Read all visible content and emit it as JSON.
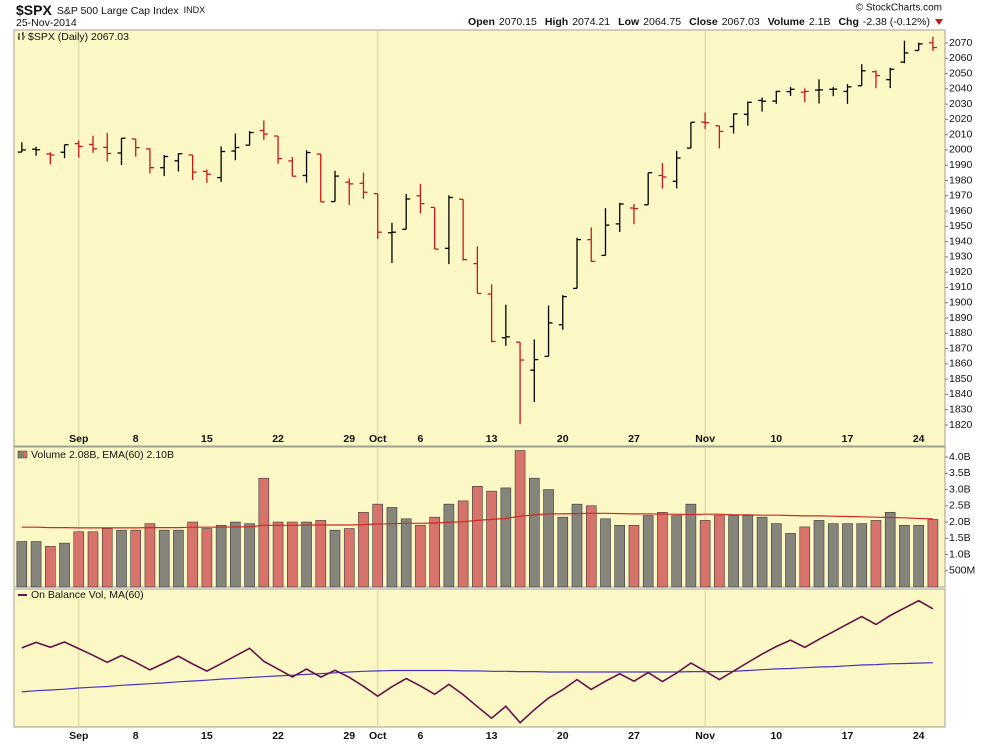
{
  "header": {
    "symbol": "$SPX",
    "name": "S&P 500 Large Cap Index",
    "exchange": "INDX",
    "date": "25-Nov-2014",
    "credit": "© StockCharts.com",
    "quote": [
      {
        "label": "Open",
        "value": "2070.15"
      },
      {
        "label": "High",
        "value": "2074.21"
      },
      {
        "label": "Low",
        "value": "2064.75"
      },
      {
        "label": "Close",
        "value": "2067.03"
      },
      {
        "label": "Volume",
        "value": "2.1B"
      },
      {
        "label": "Chg",
        "value": "-2.38 (-0.12%)"
      }
    ]
  },
  "chart_data": [
    {
      "type": "ohlc",
      "title": "$SPX (Daily) 2067.03",
      "open": [
        1998.6,
        2000.5,
        1997.4,
        1998.5,
        2004.1,
        2003.6,
        2001.7,
        1998.0,
        2007.2,
        2000.7,
        1988.4,
        1992.9,
        1996.7,
        1986.0,
        1981.9,
        1999.3,
        2003.1,
        2012.7,
        2009.1,
        1992.8,
        1983.3,
        1997.3,
        1966.2,
        1978.9,
        1978.2,
        1971.4,
        1945.8,
        1948.1,
        1970.0,
        1962.4,
        1935.6,
        1967.7,
        1925.6,
        1905.7,
        1877.1,
        1874.2,
        1855.9,
        1864.9,
        1885.6,
        1909.4,
        1941.3,
        1931.0,
        1951.6,
        1962.0,
        1964.1,
        1983.3,
        1979.5,
        2001.2,
        2018.2,
        2015.8,
        2015.3,
        2023.3,
        2032.4,
        2032.0,
        2038.2,
        2037.8,
        2039.2,
        2039.7,
        2038.3,
        2042.0,
        2051.2,
        2046.0,
        2057.5,
        2065.1,
        2070.15
      ],
      "high": [
        2005.0,
        2002.1,
        1998.5,
        2003.4,
        2006.1,
        2009.3,
        2011.2,
        2007.7,
        2007.2,
        2001.0,
        1996.7,
        1997.7,
        1996.7,
        1987.2,
        2002.3,
        2010.7,
        2012.3,
        2019.3,
        2009.1,
        1995.4,
        1999.8,
        1997.3,
        1986.4,
        1981.3,
        1985.2,
        1971.4,
        1952.3,
        1971.2,
        1977.8,
        1962.4,
        1970.4,
        1967.7,
        1936.9,
        1912.1,
        1898.7,
        1874.2,
        1876.0,
        1898.2,
        1905.0,
        1942.5,
        1949.3,
        1961.9,
        1965.3,
        1964.6,
        1985.1,
        1991.4,
        1999.4,
        2018.2,
        2024.5,
        2015.8,
        2023.8,
        2031.6,
        2034.3,
        2038.7,
        2041.3,
        2040.3,
        2046.2,
        2041.1,
        2043.1,
        2056.1,
        2052.1,
        2053.8,
        2071.5,
        2070.2,
        2074.21
      ],
      "low": [
        1998.6,
        1996.2,
        1990.5,
        1994.6,
        1994.9,
        1998.1,
        1992.4,
        1990.1,
        1995.6,
        1984.6,
        1982.9,
        1985.9,
        1980.3,
        1978.5,
        1979.1,
        1993.3,
        2003.1,
        2006.6,
        1991.0,
        1982.8,
        1978.6,
        1965.9,
        1966.2,
        1964.0,
        1968.0,
        1941.7,
        1926.0,
        1948.1,
        1958.4,
        1935.1,
        1925.3,
        1927.6,
        1906.1,
        1874.1,
        1871.8,
        1820.7,
        1835.0,
        1864.9,
        1882.3,
        1909.4,
        1926.8,
        1931.0,
        1946.3,
        1951.4,
        1964.1,
        1974.7,
        1974.8,
        2001.2,
        2013.7,
        2001.0,
        2010.7,
        2015.9,
        2025.1,
        2030.2,
        2035.3,
        2031.3,
        2030.4,
        2035.2,
        2030.2,
        2042.0,
        2040.4,
        2040.5,
        2056.8,
        2065.1,
        2064.75
      ],
      "close": [
        2000.0,
        2000.1,
        1996.7,
        2003.4,
        2002.3,
        2000.7,
        1997.7,
        2007.7,
        2001.5,
        1988.4,
        1995.7,
        1997.5,
        1985.5,
        1984.1,
        1999.0,
        2001.6,
        2011.4,
        2010.4,
        1994.3,
        1982.8,
        1998.3,
        1966.0,
        1982.9,
        1977.8,
        1972.3,
        1946.16,
        1946.17,
        1967.9,
        1964.8,
        1935.1,
        1968.9,
        1928.2,
        1906.1,
        1874.7,
        1877.7,
        1862.5,
        1862.8,
        1886.8,
        1904.0,
        1941.3,
        1927.1,
        1950.8,
        1964.6,
        1961.6,
        1985.1,
        1982.3,
        1994.7,
        2018.1,
        2017.8,
        2012.1,
        2023.6,
        2031.2,
        2031.9,
        2038.3,
        2039.7,
        2038.3,
        2039.3,
        2039.8,
        2041.3,
        2051.8,
        2048.7,
        2052.8,
        2063.5,
        2069.4,
        2067.03
      ],
      "up_color": "#000000",
      "down_color": "#c81818",
      "xlim": [
        -0.55,
        64.85
      ],
      "xticks": [
        {
          "value": 4,
          "label": "Sep"
        },
        {
          "value": 8,
          "label": "8"
        },
        {
          "value": 13,
          "label": "15"
        },
        {
          "value": 18,
          "label": "22"
        },
        {
          "value": 23,
          "label": "29"
        },
        {
          "value": 25,
          "label": "Oct"
        },
        {
          "value": 28,
          "label": "6"
        },
        {
          "value": 33,
          "label": "13"
        },
        {
          "value": 38,
          "label": "20"
        },
        {
          "value": 43,
          "label": "27"
        },
        {
          "value": 48,
          "label": "Nov"
        },
        {
          "value": 53,
          "label": "10"
        },
        {
          "value": 58,
          "label": "17"
        },
        {
          "value": 63,
          "label": "24"
        }
      ],
      "ylim": [
        1815.4,
        2078.5
      ],
      "yticks": [
        1820,
        1830,
        1840,
        1850,
        1860,
        1870,
        1880,
        1890,
        1900,
        1910,
        1920,
        1930,
        1940,
        1950,
        1960,
        1970,
        1980,
        1990,
        2000,
        2010,
        2020,
        2030,
        2040,
        2050,
        2060,
        2070
      ]
    },
    {
      "type": "bar",
      "title": "Volume 2.08B, EMA(60) 2.10B",
      "values": [
        1.4,
        1.4,
        1.25,
        1.35,
        1.7,
        1.7,
        1.8,
        1.75,
        1.75,
        1.95,
        1.75,
        1.75,
        2.0,
        1.8,
        1.9,
        2.0,
        1.95,
        3.35,
        2.0,
        2.0,
        2.0,
        2.05,
        1.75,
        1.8,
        2.3,
        2.55,
        2.45,
        2.1,
        1.9,
        2.15,
        2.55,
        2.65,
        3.1,
        2.95,
        3.05,
        4.2,
        3.35,
        3.0,
        2.15,
        2.55,
        2.5,
        2.1,
        1.9,
        1.9,
        2.2,
        2.3,
        2.2,
        2.55,
        2.05,
        2.2,
        2.2,
        2.2,
        2.15,
        1.95,
        1.65,
        1.85,
        2.05,
        1.95,
        1.95,
        1.95,
        2.05,
        2.3,
        1.9,
        1.9,
        2.08
      ],
      "ema": [
        1.84,
        1.84,
        1.83,
        1.83,
        1.82,
        1.82,
        1.82,
        1.82,
        1.82,
        1.83,
        1.83,
        1.83,
        1.84,
        1.84,
        1.84,
        1.85,
        1.85,
        1.9,
        1.9,
        1.9,
        1.91,
        1.91,
        1.91,
        1.91,
        1.92,
        1.94,
        1.95,
        1.96,
        1.96,
        1.97,
        1.99,
        2.01,
        2.05,
        2.08,
        2.11,
        2.18,
        2.22,
        2.25,
        2.25,
        2.26,
        2.27,
        2.27,
        2.26,
        2.25,
        2.25,
        2.24,
        2.24,
        2.23,
        2.24,
        2.24,
        2.22,
        2.22,
        2.21,
        2.21,
        2.2,
        2.19,
        2.19,
        2.18,
        2.17,
        2.16,
        2.15,
        2.14,
        2.13,
        2.11,
        2.1
      ],
      "up_color": "#85857c",
      "down_color": "#d8736c",
      "ema_color": "#cc2a22",
      "ylim": [
        0,
        4.31
      ],
      "yticks": [
        {
          "value": 4.0,
          "label": "4.0B"
        },
        {
          "value": 3.5,
          "label": "3.5B"
        },
        {
          "value": 3.0,
          "label": "3.0B"
        },
        {
          "value": 2.5,
          "label": "2.5B"
        },
        {
          "value": 2.0,
          "label": "2.0B"
        },
        {
          "value": 1.5,
          "label": "1.5B"
        },
        {
          "value": 1.0,
          "label": "1.0B"
        },
        {
          "value": 0.5,
          "label": "500M"
        }
      ]
    },
    {
      "type": "line",
      "title": "On Balance Vol, MA(60)",
      "values": [
        0,
        1.4,
        0.15,
        1.5,
        -0.2,
        -1.9,
        -3.7,
        -1.95,
        -3.7,
        -5.65,
        -3.9,
        -2.15,
        -4.15,
        -5.95,
        -4.05,
        -2.05,
        -0.1,
        -3.45,
        -5.45,
        -7.45,
        -5.45,
        -7.5,
        -5.75,
        -7.55,
        -9.85,
        -12.4,
        -9.95,
        -7.85,
        -9.75,
        -11.9,
        -9.35,
        -12.0,
        -15.1,
        -18.05,
        -15.0,
        -19.2,
        -15.85,
        -12.85,
        -10.7,
        -8.15,
        -10.65,
        -8.55,
        -6.65,
        -8.55,
        -6.35,
        -8.65,
        -6.45,
        -3.9,
        -5.95,
        -8.15,
        -5.95,
        -3.75,
        -1.6,
        0.35,
        2.0,
        0.15,
        2.2,
        4.15,
        6.1,
        8.05,
        6.0,
        8.3,
        10.2,
        12.1,
        10.02
      ],
      "ma": [
        -11.3,
        -11.0,
        -10.8,
        -10.6,
        -10.3,
        -10.1,
        -9.9,
        -9.6,
        -9.4,
        -9.2,
        -9.0,
        -8.7,
        -8.5,
        -8.3,
        -8.0,
        -7.8,
        -7.6,
        -7.4,
        -7.2,
        -7.0,
        -6.8,
        -6.6,
        -6.4,
        -6.2,
        -6.0,
        -5.9,
        -5.8,
        -5.8,
        -5.8,
        -5.8,
        -5.8,
        -5.9,
        -5.9,
        -6.0,
        -6.0,
        -6.1,
        -6.1,
        -6.2,
        -6.2,
        -6.2,
        -6.2,
        -6.2,
        -6.2,
        -6.2,
        -6.2,
        -6.2,
        -6.2,
        -6.1,
        -6.1,
        -6.1,
        -6.0,
        -5.8,
        -5.6,
        -5.4,
        -5.3,
        -5.1,
        -4.9,
        -4.8,
        -4.6,
        -4.4,
        -4.3,
        -4.1,
        -4.0,
        -3.9,
        -3.8
      ],
      "color": "#661048",
      "ma_color": "#4a34c2",
      "ylim": [
        -20.3,
        15.1
      ]
    }
  ]
}
